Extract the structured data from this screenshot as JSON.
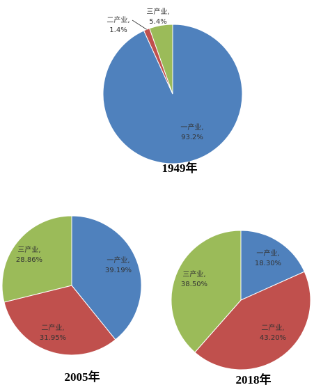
{
  "chart_data": [
    {
      "type": "pie",
      "title": "1949年",
      "categories": [
        "一产业,",
        "二产业,",
        "三产业,"
      ],
      "values": [
        93.2,
        1.4,
        5.4
      ],
      "value_labels": [
        "93.2%",
        "1.4%",
        "5.4%"
      ],
      "colors": [
        "#4f81bd",
        "#c0504d",
        "#9bbb59"
      ]
    },
    {
      "type": "pie",
      "title": "2005年",
      "categories": [
        "一产业,",
        "二产业,",
        "三产业,"
      ],
      "values": [
        39.19,
        31.95,
        28.86
      ],
      "value_labels": [
        "39.19%",
        "31.95%",
        "28.86%"
      ],
      "colors": [
        "#4f81bd",
        "#c0504d",
        "#9bbb59"
      ]
    },
    {
      "type": "pie",
      "title": "2018年",
      "categories": [
        "一产业,",
        "二产业,",
        "三产业,"
      ],
      "values": [
        18.3,
        43.2,
        38.5
      ],
      "value_labels": [
        "18.30%",
        "43.20%",
        "38.50%"
      ],
      "colors": [
        "#4f81bd",
        "#c0504d",
        "#9bbb59"
      ]
    }
  ]
}
